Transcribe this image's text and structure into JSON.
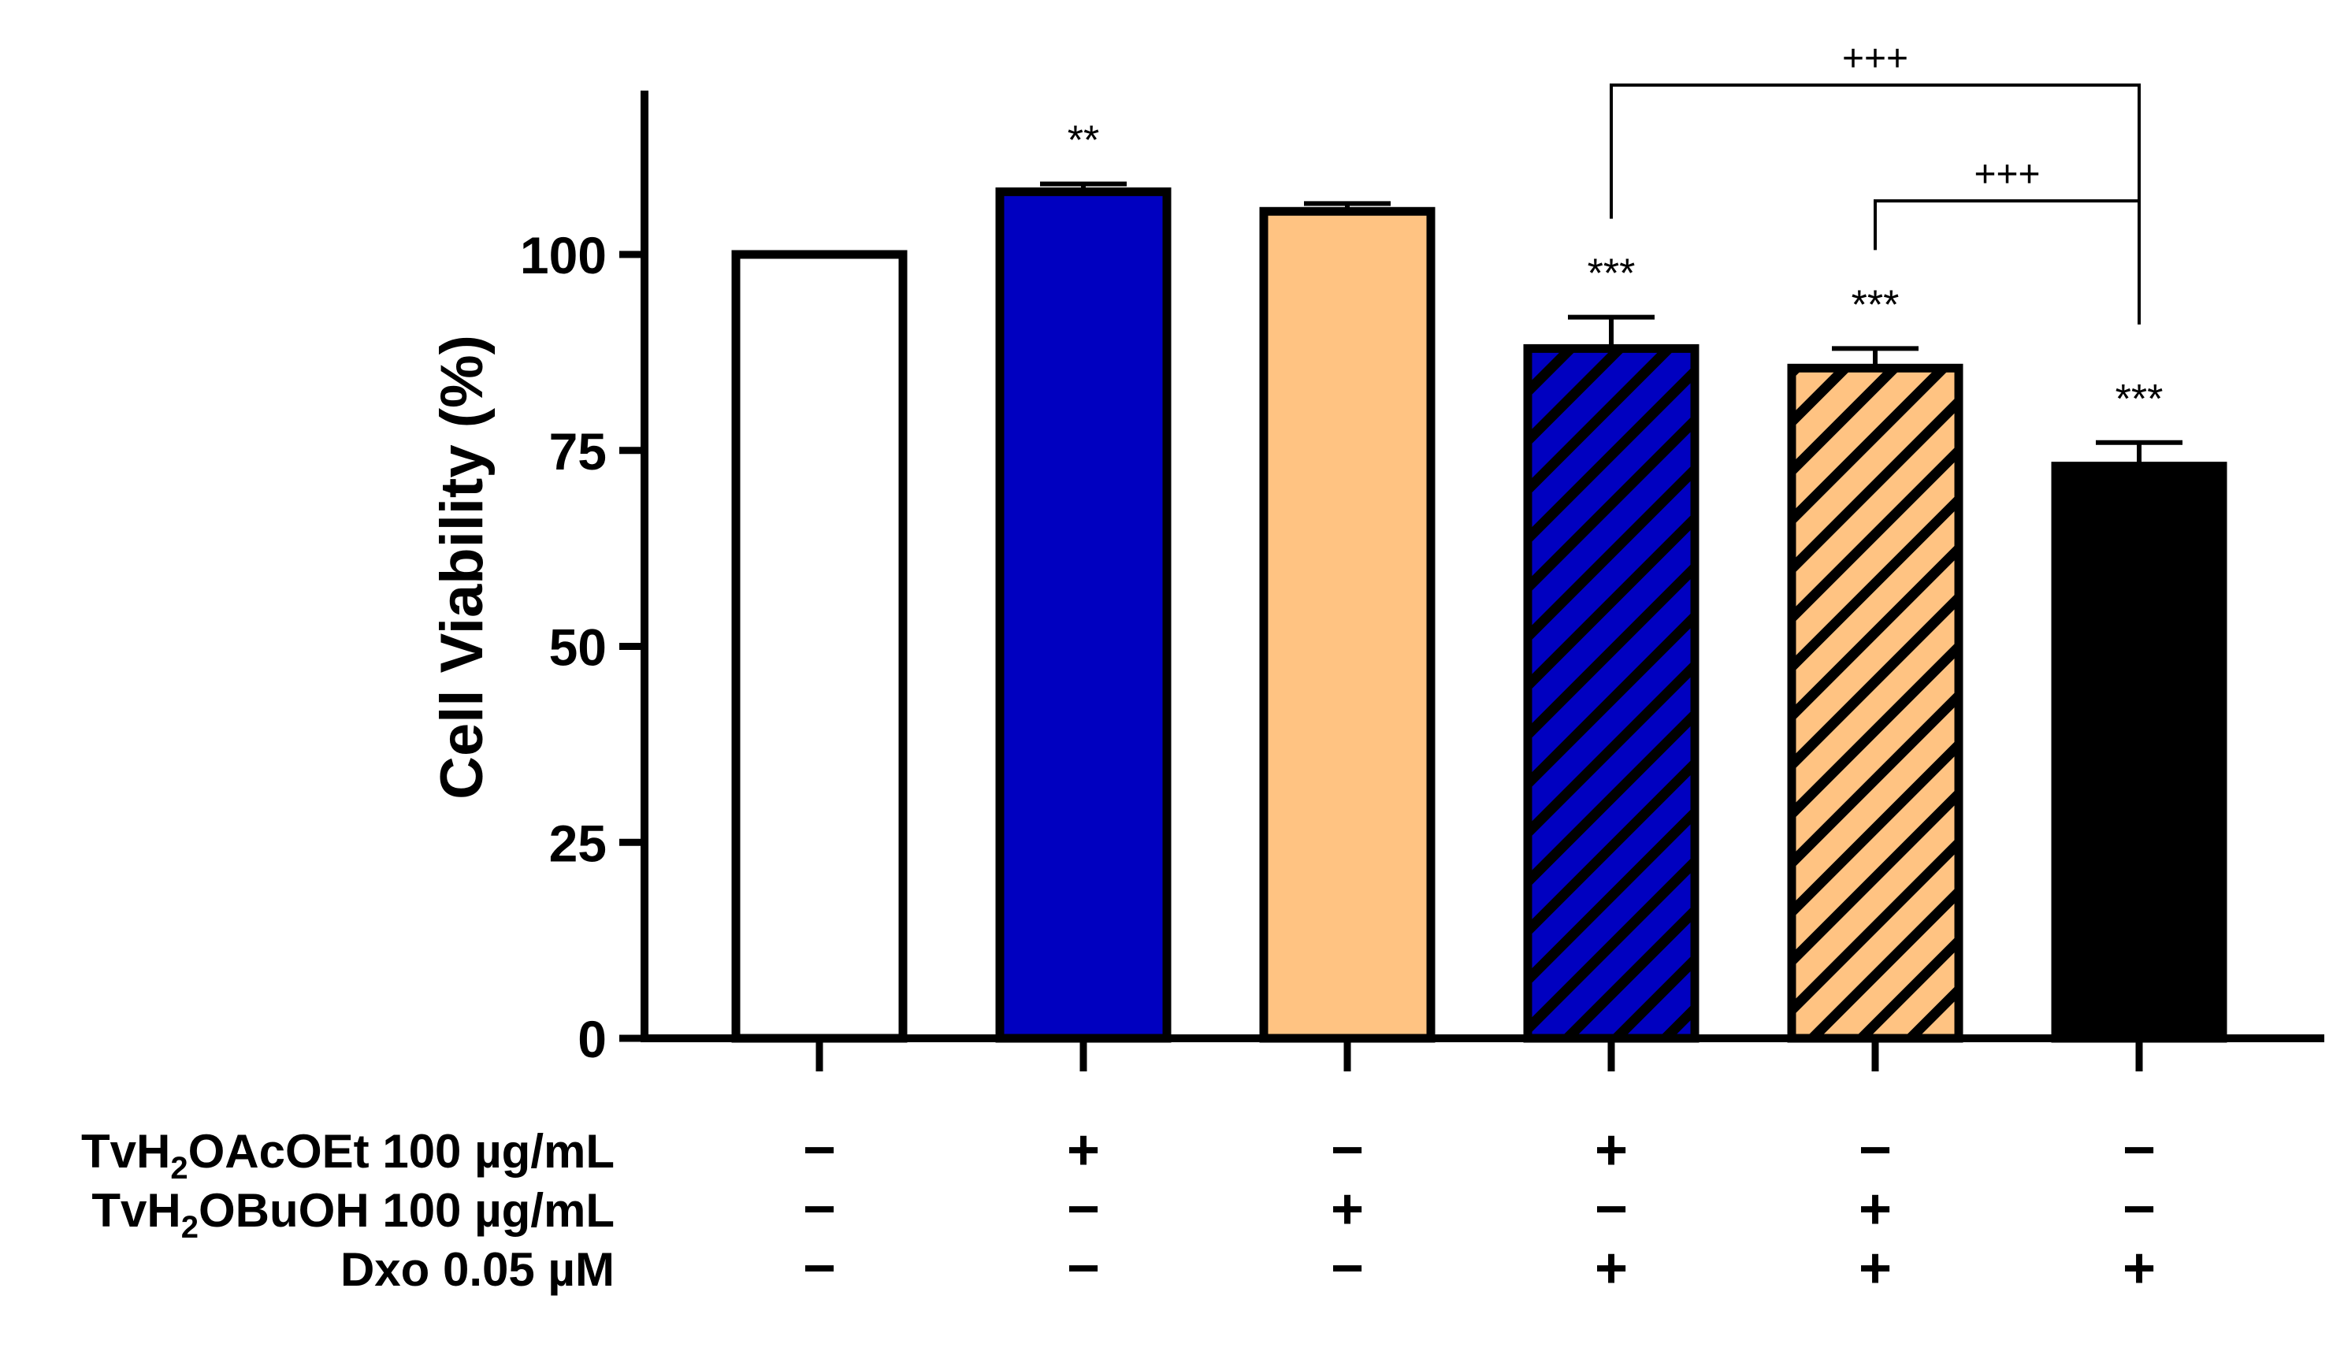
{
  "chart_data": {
    "type": "bar",
    "ylabel": "Cell Viability (%)",
    "ylim": [
      0,
      120
    ],
    "yticks": [
      0,
      25,
      50,
      75,
      100
    ],
    "grid": false,
    "values": [
      100,
      108,
      105.5,
      88,
      85.5,
      73
    ],
    "errors": [
      0,
      1,
      1,
      4,
      2.5,
      3
    ],
    "bar_colors": [
      "#ffffff",
      "#0000c0",
      "#ffc382",
      "#0000c0",
      "#ffc382",
      "#000000"
    ],
    "hatched": [
      false,
      false,
      false,
      true,
      true,
      false
    ],
    "significance": [
      "",
      "**",
      "",
      "***",
      "***",
      "***"
    ],
    "brackets": [
      {
        "from_bar": 3,
        "to_bar": 5,
        "label": "+++",
        "level": 1
      },
      {
        "from_bar": 4,
        "to_bar": 5,
        "label": "+++",
        "level": 0
      }
    ],
    "treatment_rows": [
      {
        "label_main": "TvH",
        "label_sub": "2",
        "label_rest": "OAcOEt 100 µg/mL",
        "signs": [
          "−",
          "+",
          "−",
          "+",
          "−",
          "−"
        ]
      },
      {
        "label_main": "TvH",
        "label_sub": "2",
        "label_rest": "OBuOH 100 µg/mL",
        "signs": [
          "−",
          "−",
          "+",
          "−",
          "+",
          "−"
        ]
      },
      {
        "label_main": "Dxo 0.05 µM",
        "label_sub": "",
        "label_rest": "",
        "signs": [
          "−",
          "−",
          "−",
          "+",
          "+",
          "+"
        ]
      }
    ]
  }
}
